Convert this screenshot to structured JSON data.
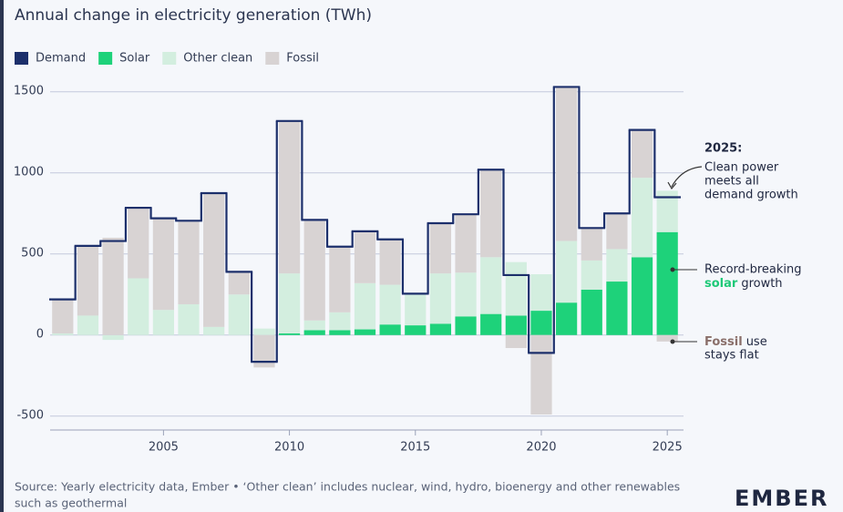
{
  "chart_data": {
    "type": "bar",
    "title": "Annual change in electricity generation (TWh)",
    "x": [
      2001,
      2002,
      2003,
      2004,
      2005,
      2006,
      2007,
      2008,
      2009,
      2010,
      2011,
      2012,
      2013,
      2014,
      2015,
      2016,
      2017,
      2018,
      2019,
      2020,
      2021,
      2022,
      2023,
      2024,
      2025
    ],
    "series": [
      {
        "name": "Demand",
        "color": "#1c2f6b",
        "style": "step",
        "values": [
          220,
          550,
          580,
          785,
          720,
          705,
          875,
          390,
          -165,
          1320,
          710,
          545,
          640,
          590,
          255,
          690,
          745,
          1020,
          370,
          -110,
          1530,
          660,
          750,
          1265,
          850
        ]
      },
      {
        "name": "Solar",
        "color": "#1ed27a",
        "values": [
          0,
          0,
          0,
          0,
          0,
          0,
          0,
          0,
          0,
          10,
          30,
          30,
          35,
          65,
          60,
          70,
          115,
          130,
          120,
          150,
          200,
          280,
          330,
          480,
          635
        ]
      },
      {
        "name": "Other clean",
        "color": "#d3eedf",
        "values": [
          10,
          120,
          -30,
          350,
          155,
          190,
          50,
          250,
          40,
          370,
          60,
          110,
          285,
          245,
          190,
          310,
          270,
          350,
          330,
          225,
          380,
          180,
          200,
          490,
          255
        ]
      },
      {
        "name": "Fossil",
        "color": "#d8d3d3",
        "values": [
          210,
          430,
          600,
          430,
          565,
          510,
          820,
          140,
          -200,
          940,
          620,
          400,
          320,
          280,
          5,
          310,
          360,
          540,
          -80,
          -490,
          950,
          200,
          220,
          295,
          -40
        ]
      }
    ],
    "xlim": [
      2000.5,
      2025.5
    ],
    "xticks": [
      2005,
      2010,
      2015,
      2020,
      2025
    ],
    "ylim": [
      -580,
      1600
    ],
    "yticks": [
      -500,
      0,
      500,
      1000,
      1500
    ],
    "grid": true,
    "legend": "top-left",
    "annotations": {
      "clean": {
        "title": "2025:",
        "lines": [
          "Clean power",
          "meets all",
          "demand growth"
        ]
      },
      "solar": {
        "lines": [
          "Record-breaking"
        ],
        "highlight": "solar",
        "rest": "growth"
      },
      "fossil": {
        "highlight": "Fossil",
        "rest": "use",
        "lines": [
          "stays flat"
        ]
      }
    },
    "source": [
      "Source: Yearly electricity data, Ember • ‘Other clean’ includes nuclear, wind, hydro, bioenergy and other renewables",
      "such as geothermal"
    ],
    "logo": "EMBER"
  }
}
